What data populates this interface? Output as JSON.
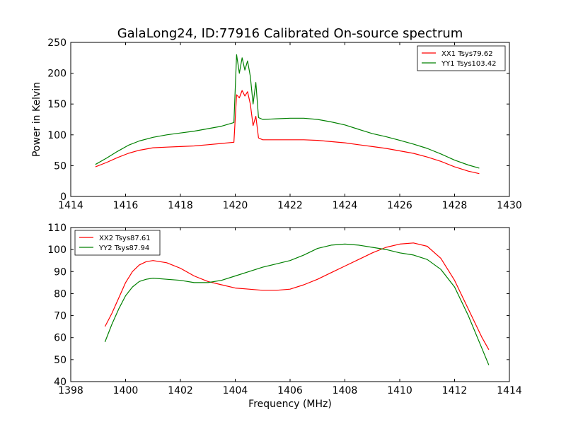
{
  "figure": {
    "title": "GalaLong24, ID:77916 Calibrated On-source spectrum",
    "xlabel": "Frequency (MHz)"
  },
  "colors": {
    "red": "#ff0000",
    "green": "#008000"
  },
  "chart_data": [
    {
      "type": "line",
      "ylabel": "Power in Kelvin",
      "xlim": [
        1414,
        1430
      ],
      "ylim": [
        0,
        250
      ],
      "xticks": [
        1414,
        1416,
        1418,
        1420,
        1422,
        1424,
        1426,
        1428,
        1430
      ],
      "yticks": [
        0,
        50,
        100,
        150,
        200,
        250
      ],
      "legend_position": "top-right",
      "series": [
        {
          "name": "XX1 Tsys79.62",
          "color": "#ff0000",
          "x": [
            1414.9,
            1415.3,
            1415.7,
            1416.1,
            1416.5,
            1417.0,
            1417.5,
            1418.0,
            1418.5,
            1419.0,
            1419.5,
            1419.95,
            1420.05,
            1420.15,
            1420.25,
            1420.35,
            1420.45,
            1420.55,
            1420.65,
            1420.75,
            1420.85,
            1421.0,
            1421.5,
            1422.0,
            1422.5,
            1423.0,
            1423.5,
            1424.0,
            1424.5,
            1425.0,
            1425.5,
            1426.0,
            1426.5,
            1427.0,
            1427.5,
            1428.0,
            1428.5,
            1428.9
          ],
          "y": [
            48,
            55,
            63,
            70,
            75,
            79,
            80,
            81,
            82,
            84,
            86,
            88,
            165,
            160,
            172,
            163,
            170,
            150,
            115,
            130,
            95,
            92,
            92,
            92,
            92,
            91,
            89,
            87,
            84,
            81,
            78,
            74,
            70,
            64,
            57,
            48,
            41,
            37
          ]
        },
        {
          "name": "YY1 Tsys103.42",
          "color": "#008000",
          "x": [
            1414.9,
            1415.3,
            1415.7,
            1416.1,
            1416.5,
            1417.0,
            1417.5,
            1418.0,
            1418.5,
            1419.0,
            1419.5,
            1419.95,
            1420.05,
            1420.15,
            1420.25,
            1420.35,
            1420.45,
            1420.55,
            1420.65,
            1420.75,
            1420.85,
            1421.0,
            1421.5,
            1422.0,
            1422.5,
            1423.0,
            1423.5,
            1424.0,
            1424.5,
            1425.0,
            1425.5,
            1426.0,
            1426.5,
            1427.0,
            1427.5,
            1428.0,
            1428.5,
            1428.9
          ],
          "y": [
            52,
            62,
            73,
            83,
            90,
            96,
            100,
            103,
            106,
            110,
            114,
            120,
            230,
            200,
            225,
            205,
            220,
            195,
            150,
            185,
            128,
            125,
            126,
            127,
            127,
            125,
            121,
            116,
            109,
            102,
            97,
            91,
            85,
            78,
            69,
            59,
            51,
            46
          ]
        }
      ]
    },
    {
      "type": "line",
      "ylabel": "",
      "xlim": [
        1398,
        1414
      ],
      "ylim": [
        40,
        110
      ],
      "xticks": [
        1398,
        1400,
        1402,
        1404,
        1406,
        1408,
        1410,
        1412,
        1414
      ],
      "yticks": [
        40,
        50,
        60,
        70,
        80,
        90,
        100,
        110
      ],
      "legend_position": "top-left",
      "series": [
        {
          "name": "XX2 Tsys87.61",
          "color": "#ff0000",
          "x": [
            1399.25,
            1399.5,
            1399.75,
            1400.0,
            1400.25,
            1400.5,
            1400.75,
            1401.0,
            1401.5,
            1402.0,
            1402.5,
            1403.0,
            1403.5,
            1404.0,
            1404.5,
            1405.0,
            1405.5,
            1406.0,
            1406.5,
            1407.0,
            1407.5,
            1408.0,
            1408.5,
            1409.0,
            1409.5,
            1410.0,
            1410.5,
            1411.0,
            1411.5,
            1412.0,
            1412.5,
            1413.0,
            1413.25
          ],
          "y": [
            65,
            71,
            78,
            85,
            90,
            93,
            94.5,
            95,
            94,
            91.5,
            88,
            85.5,
            84,
            82.5,
            82,
            81.5,
            81.5,
            82,
            84,
            86.5,
            89.5,
            92.5,
            95.5,
            98.5,
            101,
            102.5,
            103,
            101.5,
            96,
            86,
            73,
            60,
            54.5
          ]
        },
        {
          "name": "YY2 Tsys87.94",
          "color": "#008000",
          "x": [
            1399.25,
            1399.5,
            1399.75,
            1400.0,
            1400.25,
            1400.5,
            1400.75,
            1401.0,
            1401.5,
            1402.0,
            1402.5,
            1403.0,
            1403.5,
            1404.0,
            1404.5,
            1405.0,
            1405.5,
            1406.0,
            1406.5,
            1407.0,
            1407.5,
            1408.0,
            1408.5,
            1409.0,
            1409.5,
            1410.0,
            1410.5,
            1411.0,
            1411.5,
            1412.0,
            1412.5,
            1413.0,
            1413.25
          ],
          "y": [
            58,
            66,
            73,
            79,
            83,
            85.5,
            86.5,
            87,
            86.5,
            86,
            85,
            85,
            86,
            88,
            90,
            92,
            93.5,
            95,
            97.5,
            100.5,
            102,
            102.5,
            102,
            101,
            100,
            98.5,
            97.5,
            95.5,
            91,
            83,
            70,
            55,
            47.5
          ]
        }
      ]
    }
  ]
}
